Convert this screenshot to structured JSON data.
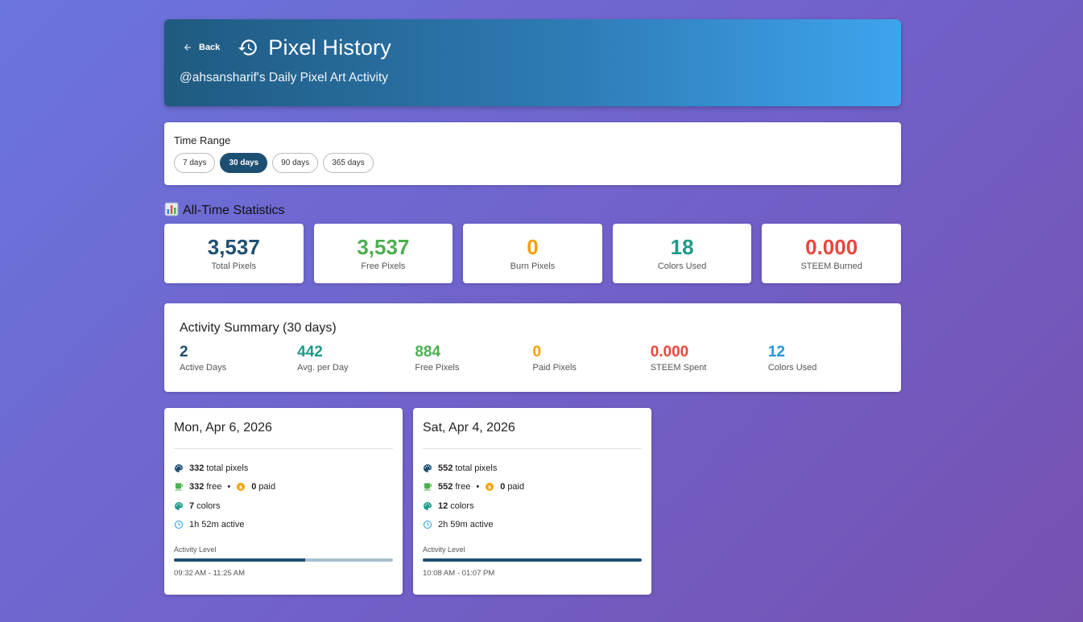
{
  "header": {
    "back_label": "Back",
    "title": "Pixel History",
    "subtitle": "@ahsansharif's Daily Pixel Art Activity"
  },
  "time_range": {
    "label": "Time Range",
    "options": [
      "7 days",
      "30 days",
      "90 days",
      "365 days"
    ],
    "selected": "30 days"
  },
  "all_time": {
    "title": "All-Time Statistics",
    "icon": "bar-chart-icon",
    "stats": [
      {
        "value": "3,537",
        "label": "Total Pixels",
        "color": "#1d4f72"
      },
      {
        "value": "3,537",
        "label": "Free Pixels",
        "color": "#4caf50"
      },
      {
        "value": "0",
        "label": "Burn Pixels",
        "color": "#f5a000"
      },
      {
        "value": "18",
        "label": "Colors Used",
        "color": "#1e9a8a"
      },
      {
        "value": "0.000",
        "label": "STEEM Burned",
        "color": "#e8473d"
      }
    ]
  },
  "summary": {
    "title": "Activity Summary (30 days)",
    "items": [
      {
        "value": "2",
        "label": "Active Days",
        "color": "#1d4f72"
      },
      {
        "value": "442",
        "label": "Avg. per Day",
        "color": "#1e9a8a"
      },
      {
        "value": "884",
        "label": "Free Pixels",
        "color": "#4caf50"
      },
      {
        "value": "0",
        "label": "Paid Pixels",
        "color": "#f5a000"
      },
      {
        "value": "0.000",
        "label": "STEEM Spent",
        "color": "#e8473d"
      },
      {
        "value": "12",
        "label": "Colors Used",
        "color": "#2196e0"
      }
    ]
  },
  "days": [
    {
      "date": "Mon, Apr 6, 2026",
      "total": "332",
      "total_suffix": "total pixels",
      "free": "332",
      "free_suffix": "free",
      "paid": "0",
      "paid_suffix": "paid",
      "colors": "7",
      "colors_suffix": "colors",
      "active": "1h 52m active",
      "activity_label": "Activity Level",
      "activity_level": 0.6,
      "time_range": "09:32 AM - 11:25 AM"
    },
    {
      "date": "Sat, Apr 4, 2026",
      "total": "552",
      "total_suffix": "total pixels",
      "free": "552",
      "free_suffix": "free",
      "paid": "0",
      "paid_suffix": "paid",
      "colors": "12",
      "colors_suffix": "colors",
      "active": "2h 59m active",
      "activity_label": "Activity Level",
      "activity_level": 1.0,
      "time_range": "10:08 AM - 01:07 PM"
    }
  ]
}
